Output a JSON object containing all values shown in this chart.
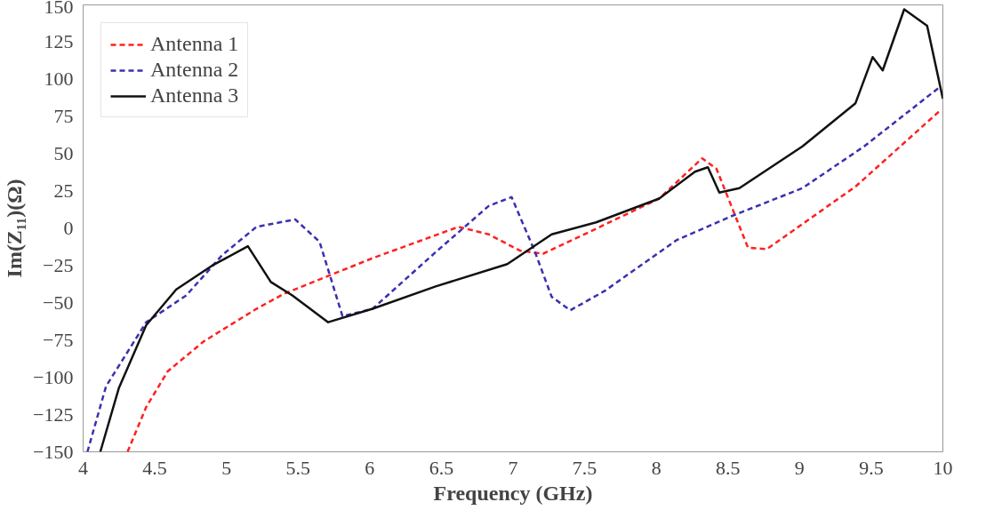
{
  "chart_data": {
    "type": "line",
    "xlabel": "Frequency (GHz)",
    "ylabel": "Im(Z₁₁)(Ω)",
    "xlim": [
      4,
      10
    ],
    "xticks": [
      4,
      4.5,
      5,
      5.5,
      6,
      6.5,
      7,
      7.5,
      8,
      8.5,
      9,
      9.5,
      10
    ],
    "ylim": [
      -150,
      150
    ],
    "yticks": [
      -150,
      -125,
      -100,
      -75,
      -50,
      -25,
      0,
      25,
      50,
      75,
      100,
      125,
      150
    ],
    "grid": false,
    "legend": "top left",
    "series": [
      {
        "name": "Antenna 1",
        "color": "#ff2020",
        "line_style": "dashed",
        "x": [
          4.31,
          4.44,
          4.59,
          4.84,
          5.21,
          5.4,
          6.02,
          6.62,
          6.83,
          7.05,
          7.21,
          7.52,
          8.02,
          8.32,
          8.42,
          8.64,
          8.77,
          9.39,
          9.98
        ],
        "values": [
          -150,
          -120,
          -96,
          -76,
          -54,
          -44,
          -20,
          1,
          -4,
          -15,
          -17,
          -3,
          20,
          47,
          40,
          -13,
          -14,
          28,
          79
        ]
      },
      {
        "name": "Antenna 2",
        "color": "#3a30b0",
        "line_style": "dashed",
        "x": [
          4.03,
          4.16,
          4.44,
          4.72,
          4.97,
          5.21,
          5.48,
          5.65,
          5.81,
          6.02,
          6.46,
          6.83,
          6.99,
          7.15,
          7.27,
          7.4,
          7.64,
          8.14,
          8.52,
          9.02,
          9.45,
          9.98
        ],
        "values": [
          -150,
          -106,
          -63,
          -45,
          -18,
          1,
          6,
          -9,
          -59,
          -54,
          -16,
          15,
          21,
          -15,
          -46,
          -55,
          -42,
          -8,
          8,
          27,
          55,
          95
        ]
      },
      {
        "name": "Antenna 3",
        "color": "#111111",
        "line_style": "solid",
        "x": [
          4.12,
          4.25,
          4.44,
          4.65,
          4.9,
          5.15,
          5.31,
          5.46,
          5.71,
          6.02,
          6.46,
          6.96,
          7.27,
          7.58,
          8.02,
          8.27,
          8.36,
          8.44,
          8.58,
          9.02,
          9.39,
          9.51,
          9.58,
          9.73,
          9.89,
          10
        ],
        "values": [
          -150,
          -107,
          -65,
          -41,
          -25,
          -12,
          -36,
          -45,
          -63,
          -54,
          -39,
          -24,
          -4,
          4,
          20,
          38,
          41,
          24,
          27,
          55,
          84,
          115,
          106,
          147,
          136,
          87
        ]
      }
    ]
  }
}
